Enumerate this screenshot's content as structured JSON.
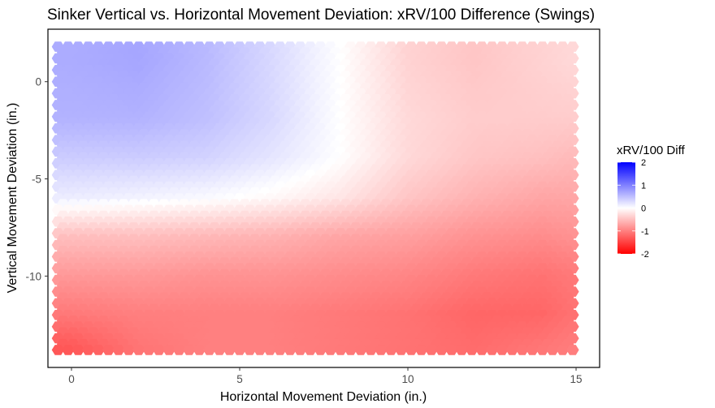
{
  "chart_data": {
    "type": "heatmap",
    "title": "Sinker Vertical vs. Horizontal Movement Deviation: xRV/100 Difference (Swings)",
    "xlabel": "Horizontal Movement Deviation (in.)",
    "ylabel": "Vertical Movement Deviation (in.)",
    "xlim": [
      -0.7,
      15.7
    ],
    "ylim": [
      -14.7,
      2.7
    ],
    "x_ticks": [
      0,
      5,
      10,
      15
    ],
    "y_ticks": [
      0,
      -5,
      -10
    ],
    "x_range": [
      -0.4,
      15.0
    ],
    "y_range": [
      -14.0,
      1.8
    ],
    "cell_shape": "hexagon",
    "grid": false,
    "legend": {
      "title": "xRV/100 Diff",
      "position": "right",
      "type": "colorbar",
      "min": -2,
      "max": 2,
      "ticks": [
        2,
        1,
        0,
        -1,
        -2
      ]
    },
    "colors": {
      "low": "#ff0000",
      "mid": "#ffffff",
      "high": "#0000ff"
    },
    "value_grid": {
      "description_x": [
        0,
        2,
        4,
        6,
        8,
        10,
        12,
        14,
        15
      ],
      "y": [
        1,
        -2,
        -4,
        -6,
        -8,
        -10,
        -12,
        -14
      ],
      "rows": [
        [
          0.65,
          0.7,
          0.55,
          0.3,
          0.0,
          -0.35,
          -0.45,
          -0.35,
          -0.3
        ],
        [
          0.6,
          0.6,
          0.5,
          0.3,
          0.0,
          -0.3,
          -0.4,
          -0.4,
          -0.4
        ],
        [
          0.4,
          0.4,
          0.35,
          0.2,
          0.0,
          -0.3,
          -0.45,
          -0.5,
          -0.55
        ],
        [
          0.15,
          0.1,
          0.05,
          -0.05,
          -0.2,
          -0.45,
          -0.6,
          -0.7,
          -0.7
        ],
        [
          -0.5,
          -0.5,
          -0.55,
          -0.6,
          -0.7,
          -0.75,
          -0.85,
          -0.9,
          -0.85
        ],
        [
          -0.8,
          -0.8,
          -0.85,
          -0.85,
          -0.9,
          -0.95,
          -1.05,
          -1.1,
          -1.05
        ],
        [
          -1.05,
          -1.0,
          -1.0,
          -1.0,
          -1.05,
          -1.1,
          -1.2,
          -1.2,
          -1.1
        ],
        [
          -1.35,
          -1.1,
          -1.0,
          -1.0,
          -1.05,
          -1.1,
          -1.15,
          -1.05,
          -1.0
        ]
      ]
    }
  }
}
